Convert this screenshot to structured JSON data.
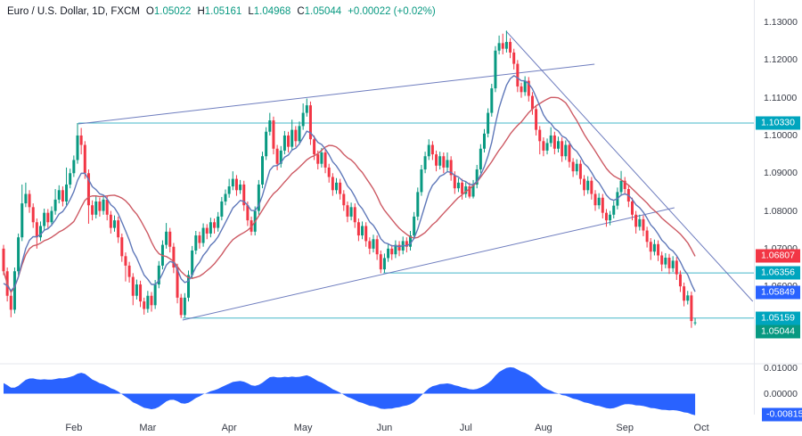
{
  "header": {
    "title": "Euro / U.S. Dollar, 1D, FXCM",
    "fields": [
      {
        "label": "O",
        "value": "1.05022"
      },
      {
        "label": "H",
        "value": "1.05161"
      },
      {
        "label": "L",
        "value": "1.04968"
      },
      {
        "label": "C",
        "value": "1.05044"
      }
    ],
    "change": "+0.00022 (+0.02%)"
  },
  "price_axis": {
    "labels": [
      {
        "text": "1.13000",
        "price": 1.13
      },
      {
        "text": "1.12000",
        "price": 1.12
      },
      {
        "text": "1.11000",
        "price": 1.11
      },
      {
        "text": "1.10000",
        "price": 1.1
      },
      {
        "text": "1.09000",
        "price": 1.09
      },
      {
        "text": "1.08000",
        "price": 1.08
      },
      {
        "text": "1.07000",
        "price": 1.07
      },
      {
        "text": "1.06000",
        "price": 1.06
      },
      {
        "text": "1.05000",
        "price": 1.05
      }
    ]
  },
  "badges": [
    {
      "text": "1.10330",
      "price": 1.1033,
      "color": "#00a5be",
      "kind": "level"
    },
    {
      "text": "1.06807",
      "price": 1.06807,
      "color": "#f23645",
      "kind": "ma-red"
    },
    {
      "text": "1.06356",
      "price": 1.06356,
      "color": "#00a5be",
      "kind": "level"
    },
    {
      "text": "1.05849",
      "price": 1.05849,
      "color": "#2962ff",
      "kind": "ma-blue"
    },
    {
      "text": "1.05159",
      "price": 1.05159,
      "color": "#00a5be",
      "kind": "level"
    },
    {
      "text": "1.05044",
      "price": 1.05044,
      "color": "#089981",
      "kind": "last-price"
    }
  ],
  "time_axis": {
    "months": [
      {
        "label": "Feb",
        "index": 19
      },
      {
        "label": "Mar",
        "index": 39
      },
      {
        "label": "Apr",
        "index": 61
      },
      {
        "label": "May",
        "index": 81
      },
      {
        "label": "Jun",
        "index": 103
      },
      {
        "label": "Jul",
        "index": 125
      },
      {
        "label": "Aug",
        "index": 146
      },
      {
        "label": "Sep",
        "index": 168
      },
      {
        "label": "Oct",
        "index": 188.7
      }
    ]
  },
  "indicator_axis": {
    "labels": [
      {
        "text": "0.01000",
        "value": 0.01
      },
      {
        "text": "0.00000",
        "value": 0.0
      }
    ],
    "badge": {
      "text": "-0.00815",
      "value": -0.00815,
      "color": "#2962ff"
    }
  },
  "colors": {
    "up": "#089981",
    "down": "#f23645",
    "ma_blue": "#5f78b9",
    "ma_red": "#cd5a64",
    "trendline": "#5f6fb8",
    "level": "#45b7c9",
    "indicator_fill": "#2962ff",
    "separator": "#e4e7ee",
    "axis_text": "#363a45"
  },
  "chart_data": {
    "type": "candlestick",
    "title": "Euro / U.S. Dollar, 1D, FXCM",
    "symbol": "EUR/USD",
    "timeframe": "1D",
    "last": {
      "open": 1.05022,
      "high": 1.05161,
      "low": 1.04968,
      "close": 1.05044,
      "change": 0.00022,
      "change_pct": 0.02
    },
    "price_range": [
      1.04,
      1.135
    ],
    "x_months": [
      "Feb",
      "Mar",
      "Apr",
      "May",
      "Jun",
      "Jul",
      "Aug",
      "Sep",
      "Oct"
    ],
    "candles": [
      [
        1.07,
        1.071,
        1.063,
        1.064
      ],
      [
        1.064,
        1.065,
        1.056,
        1.0575
      ],
      [
        1.0575,
        1.0585,
        1.0518,
        1.0538
      ],
      [
        1.0538,
        1.065,
        1.0528,
        1.064
      ],
      [
        1.064,
        1.074,
        1.063,
        1.073
      ],
      [
        1.073,
        1.087,
        1.072,
        1.082
      ],
      [
        1.082,
        1.0875,
        1.081,
        1.0845
      ],
      [
        1.0845,
        1.0855,
        1.0795,
        1.081
      ],
      [
        1.081,
        1.082,
        1.0755,
        1.077
      ],
      [
        1.077,
        1.078,
        1.07,
        1.073
      ],
      [
        1.073,
        1.0772,
        1.072,
        1.076
      ],
      [
        1.076,
        1.0806,
        1.075,
        1.0795
      ],
      [
        1.0795,
        1.0805,
        1.0755,
        1.077
      ],
      [
        1.077,
        1.0812,
        1.076,
        1.08
      ],
      [
        1.08,
        1.0858,
        1.079,
        1.083
      ],
      [
        1.083,
        1.0868,
        1.082,
        1.0855
      ],
      [
        1.0855,
        1.0865,
        1.0812,
        1.0825
      ],
      [
        1.0825,
        1.0915,
        1.0815,
        1.087
      ],
      [
        1.087,
        1.0912,
        1.086,
        1.09
      ],
      [
        1.09,
        1.0947,
        1.089,
        1.0935
      ],
      [
        1.0935,
        1.1033,
        1.0925,
        1.1
      ],
      [
        1.1,
        1.102,
        1.095,
        1.0975
      ],
      [
        1.0975,
        1.0985,
        1.0885,
        1.09
      ],
      [
        1.09,
        1.091,
        1.0766,
        1.0815
      ],
      [
        1.0815,
        1.0828,
        1.0775,
        1.079
      ],
      [
        1.079,
        1.0838,
        1.078,
        1.0825
      ],
      [
        1.0825,
        1.0835,
        1.0785,
        1.08
      ],
      [
        1.08,
        1.0842,
        1.079,
        1.083
      ],
      [
        1.083,
        1.084,
        1.0775,
        1.079
      ],
      [
        1.079,
        1.08,
        1.074,
        1.0755
      ],
      [
        1.0755,
        1.0788,
        1.0745,
        1.0775
      ],
      [
        1.0775,
        1.0785,
        1.0715,
        1.073
      ],
      [
        1.073,
        1.074,
        1.0665,
        1.068
      ],
      [
        1.068,
        1.069,
        1.0613,
        1.0655
      ],
      [
        1.0655,
        1.0665,
        1.061,
        1.0625
      ],
      [
        1.0625,
        1.0635,
        1.055,
        1.0575
      ],
      [
        1.0575,
        1.0618,
        1.0565,
        1.0605
      ],
      [
        1.0605,
        1.0615,
        1.0545,
        1.056
      ],
      [
        1.056,
        1.057,
        1.0525,
        1.054
      ],
      [
        1.054,
        1.0588,
        1.053,
        1.0575
      ],
      [
        1.0575,
        1.0585,
        1.0533,
        1.055
      ],
      [
        1.055,
        1.0617,
        1.054,
        1.0605
      ],
      [
        1.0605,
        1.0667,
        1.0595,
        1.0655
      ],
      [
        1.0655,
        1.0722,
        1.0645,
        1.071
      ],
      [
        1.071,
        1.0768,
        1.07,
        1.0745
      ],
      [
        1.0745,
        1.0755,
        1.069,
        1.0705
      ],
      [
        1.0705,
        1.0715,
        1.0635,
        1.065
      ],
      [
        1.065,
        1.066,
        1.0555,
        1.057
      ],
      [
        1.057,
        1.058,
        1.0516,
        1.0524
      ],
      [
        1.0524,
        1.0582,
        1.0517,
        1.057
      ],
      [
        1.057,
        1.0642,
        1.056,
        1.063
      ],
      [
        1.063,
        1.0707,
        1.062,
        1.0695
      ],
      [
        1.0695,
        1.0747,
        1.0685,
        1.0735
      ],
      [
        1.0735,
        1.0745,
        1.07,
        1.0715
      ],
      [
        1.0715,
        1.0767,
        1.0705,
        1.0755
      ],
      [
        1.0755,
        1.0765,
        1.0725,
        1.074
      ],
      [
        1.074,
        1.0782,
        1.073,
        1.077
      ],
      [
        1.077,
        1.078,
        1.074,
        1.0755
      ],
      [
        1.0755,
        1.0797,
        1.0745,
        1.0785
      ],
      [
        1.0785,
        1.0837,
        1.0775,
        1.0825
      ],
      [
        1.0825,
        1.0857,
        1.0815,
        1.0845
      ],
      [
        1.0845,
        1.0885,
        1.0835,
        1.0865
      ],
      [
        1.0865,
        1.0905,
        1.0855,
        1.0885
      ],
      [
        1.0885,
        1.0895,
        1.084,
        1.0855
      ],
      [
        1.0855,
        1.0882,
        1.0845,
        1.087
      ],
      [
        1.087,
        1.088,
        1.08,
        1.0815
      ],
      [
        1.0815,
        1.0825,
        1.076,
        1.0775
      ],
      [
        1.0775,
        1.0785,
        1.0735,
        1.0745
      ],
      [
        1.0745,
        1.0812,
        1.0735,
        1.08
      ],
      [
        1.08,
        1.0882,
        1.079,
        1.087
      ],
      [
        1.087,
        1.0957,
        1.086,
        1.0945
      ],
      [
        1.0945,
        1.1022,
        1.0935,
        1.101
      ],
      [
        1.101,
        1.106,
        1.1,
        1.104
      ],
      [
        1.104,
        1.105,
        1.095,
        1.0965
      ],
      [
        1.0965,
        1.0975,
        1.0908,
        1.0925
      ],
      [
        1.0925,
        1.0972,
        1.0915,
        1.096
      ],
      [
        1.096,
        1.1012,
        1.095,
        1.1
      ],
      [
        1.1,
        1.101,
        1.0955,
        1.097
      ],
      [
        1.097,
        1.1042,
        1.096,
        1.1015
      ],
      [
        1.1015,
        1.1025,
        1.097,
        1.0985
      ],
      [
        1.0985,
        1.1037,
        1.0975,
        1.1025
      ],
      [
        1.1025,
        1.1085,
        1.1015,
        1.106
      ],
      [
        1.106,
        1.1098,
        1.105,
        1.108
      ],
      [
        1.108,
        1.109,
        1.0975,
        1.099
      ],
      [
        1.099,
        1.1,
        1.0935,
        1.095
      ],
      [
        1.095,
        1.096,
        1.091,
        1.0925
      ],
      [
        1.0925,
        1.0967,
        1.0915,
        1.0955
      ],
      [
        1.0955,
        1.0965,
        1.09,
        1.0915
      ],
      [
        1.0915,
        1.0925,
        1.0875,
        1.089
      ],
      [
        1.089,
        1.09,
        1.084,
        1.0855
      ],
      [
        1.0855,
        1.0887,
        1.0845,
        1.0875
      ],
      [
        1.0875,
        1.0885,
        1.083,
        1.0845
      ],
      [
        1.0845,
        1.0855,
        1.08,
        1.0815
      ],
      [
        1.0815,
        1.0825,
        1.077,
        1.0785
      ],
      [
        1.0785,
        1.0822,
        1.0775,
        1.081
      ],
      [
        1.081,
        1.082,
        1.0755,
        1.077
      ],
      [
        1.077,
        1.078,
        1.072,
        1.0735
      ],
      [
        1.0735,
        1.0772,
        1.0725,
        1.076
      ],
      [
        1.076,
        1.077,
        1.0705,
        1.072
      ],
      [
        1.072,
        1.073,
        1.0685,
        1.07
      ],
      [
        1.07,
        1.0737,
        1.069,
        1.0725
      ],
      [
        1.0725,
        1.0735,
        1.067,
        1.0685
      ],
      [
        1.0685,
        1.0695,
        1.0635,
        1.0645
      ],
      [
        1.0645,
        1.0687,
        1.0636,
        1.0675
      ],
      [
        1.0675,
        1.0712,
        1.0665,
        1.07
      ],
      [
        1.07,
        1.071,
        1.067,
        1.0685
      ],
      [
        1.0685,
        1.0722,
        1.0675,
        1.071
      ],
      [
        1.071,
        1.072,
        1.068,
        1.0695
      ],
      [
        1.0695,
        1.0732,
        1.0685,
        1.072
      ],
      [
        1.072,
        1.073,
        1.069,
        1.0705
      ],
      [
        1.0705,
        1.0747,
        1.0695,
        1.0735
      ],
      [
        1.0735,
        1.0797,
        1.0725,
        1.0785
      ],
      [
        1.0785,
        1.0862,
        1.0775,
        1.085
      ],
      [
        1.085,
        1.0922,
        1.084,
        1.091
      ],
      [
        1.091,
        1.0957,
        1.09,
        1.0945
      ],
      [
        1.0945,
        1.099,
        1.0935,
        1.0975
      ],
      [
        1.0975,
        1.0985,
        1.0935,
        1.095
      ],
      [
        1.095,
        1.096,
        1.0905,
        1.092
      ],
      [
        1.092,
        1.0957,
        1.091,
        1.0945
      ],
      [
        1.0945,
        1.0955,
        1.09,
        1.0915
      ],
      [
        1.0915,
        1.0955,
        1.0905,
        1.0935
      ],
      [
        1.0935,
        1.0945,
        1.088,
        1.0895
      ],
      [
        1.0895,
        1.0905,
        1.0845,
        1.086
      ],
      [
        1.086,
        1.0887,
        1.085,
        1.0875
      ],
      [
        1.0875,
        1.0885,
        1.083,
        1.0845
      ],
      [
        1.0845,
        1.0877,
        1.0835,
        1.0865
      ],
      [
        1.0865,
        1.0875,
        1.0833,
        1.0838
      ],
      [
        1.0838,
        1.0882,
        1.0833,
        1.087
      ],
      [
        1.087,
        1.0922,
        1.086,
        1.091
      ],
      [
        1.091,
        1.0977,
        1.09,
        1.0965
      ],
      [
        1.0965,
        1.1017,
        1.0955,
        1.1005
      ],
      [
        1.1005,
        1.1072,
        1.0995,
        1.106
      ],
      [
        1.106,
        1.1137,
        1.105,
        1.1125
      ],
      [
        1.1125,
        1.1237,
        1.1115,
        1.1225
      ],
      [
        1.1225,
        1.1265,
        1.1215,
        1.1245
      ],
      [
        1.1245,
        1.127,
        1.1215,
        1.123
      ],
      [
        1.123,
        1.1278,
        1.122,
        1.1248
      ],
      [
        1.1248,
        1.1258,
        1.1205,
        1.122
      ],
      [
        1.122,
        1.123,
        1.1175,
        1.119
      ],
      [
        1.119,
        1.12,
        1.1115,
        1.113
      ],
      [
        1.113,
        1.114,
        1.11,
        1.1115
      ],
      [
        1.1115,
        1.1157,
        1.1105,
        1.1145
      ],
      [
        1.1145,
        1.1155,
        1.109,
        1.1105
      ],
      [
        1.1105,
        1.1115,
        1.1055,
        1.107
      ],
      [
        1.107,
        1.108,
        1.1,
        1.1015
      ],
      [
        1.1015,
        1.1025,
        1.095,
        1.0985
      ],
      [
        1.0985,
        1.0995,
        1.0945,
        1.096
      ],
      [
        1.096,
        1.0992,
        1.095,
        1.098
      ],
      [
        1.098,
        1.1022,
        1.097,
        1.1
      ],
      [
        1.1,
        1.101,
        1.095,
        1.0965
      ],
      [
        1.0965,
        1.0997,
        1.0955,
        1.0985
      ],
      [
        1.0985,
        1.0995,
        1.093,
        1.0945
      ],
      [
        1.0945,
        1.0987,
        1.0935,
        1.0975
      ],
      [
        1.0975,
        1.0985,
        1.0915,
        1.093
      ],
      [
        1.093,
        1.094,
        1.089,
        1.0905
      ],
      [
        1.0905,
        1.0937,
        1.0895,
        1.0925
      ],
      [
        1.0925,
        1.0935,
        1.087,
        1.0885
      ],
      [
        1.0885,
        1.0895,
        1.084,
        1.0855
      ],
      [
        1.0855,
        1.0892,
        1.0845,
        1.088
      ],
      [
        1.088,
        1.089,
        1.083,
        1.0845
      ],
      [
        1.0845,
        1.0855,
        1.08,
        1.0815
      ],
      [
        1.0815,
        1.0847,
        1.0805,
        1.0835
      ],
      [
        1.0835,
        1.0845,
        1.078,
        1.0795
      ],
      [
        1.0795,
        1.0805,
        1.0758,
        1.0775
      ],
      [
        1.0775,
        1.08,
        1.0762,
        1.079
      ],
      [
        1.079,
        1.0826,
        1.078,
        1.0814
      ],
      [
        1.0814,
        1.0862,
        1.0804,
        1.085
      ],
      [
        1.085,
        1.0906,
        1.084,
        1.088
      ],
      [
        1.088,
        1.089,
        1.0843,
        1.0858
      ],
      [
        1.0858,
        1.0868,
        1.081,
        1.0825
      ],
      [
        1.0825,
        1.0835,
        1.0775,
        1.079
      ],
      [
        1.079,
        1.08,
        1.074,
        1.0758
      ],
      [
        1.0758,
        1.079,
        1.0748,
        1.0778
      ],
      [
        1.0778,
        1.0788,
        1.0733,
        1.0748
      ],
      [
        1.0748,
        1.0758,
        1.0703,
        1.0718
      ],
      [
        1.0718,
        1.0728,
        1.067,
        1.0692
      ],
      [
        1.0692,
        1.0724,
        1.0682,
        1.0712
      ],
      [
        1.0712,
        1.0722,
        1.0667,
        1.0682
      ],
      [
        1.0682,
        1.0692,
        1.064,
        1.0658
      ],
      [
        1.0658,
        1.0688,
        1.0648,
        1.0676
      ],
      [
        1.0676,
        1.0686,
        1.0633,
        1.0648
      ],
      [
        1.0648,
        1.068,
        1.0638,
        1.0668
      ],
      [
        1.0668,
        1.0678,
        1.0617,
        1.0632
      ],
      [
        1.0632,
        1.0642,
        1.0585,
        1.06
      ],
      [
        1.06,
        1.061,
        1.0547,
        1.0562
      ],
      [
        1.0562,
        1.0588,
        1.0552,
        1.0576
      ],
      [
        1.0576,
        1.0586,
        1.049,
        1.0508
      ],
      [
        1.05022,
        1.05161,
        1.04968,
        1.05044
      ]
    ],
    "levels": [
      {
        "price": 1.1033,
        "from_index": 20.2
      },
      {
        "price": 1.06356,
        "from_index": 102.7
      },
      {
        "price": 1.05159,
        "from_index": 48.4
      }
    ],
    "trendlines": [
      {
        "i1": 20.2,
        "p1": 1.10307,
        "i2": 159.8,
        "p2": 1.11891
      },
      {
        "i1": 48.4,
        "p1": 1.05106,
        "i2": 181.4,
        "p2": 1.08085
      },
      {
        "i1": 135.9,
        "p1": 1.12765,
        "i2": 202.6,
        "p2": 1.05602
      }
    ],
    "moving_averages": [
      {
        "kind": "ema",
        "period": 9,
        "color": "#5f78b9",
        "last_value": 1.05849
      },
      {
        "kind": "sma",
        "period": 20,
        "color": "#cd5a64",
        "last_value": 1.06807
      }
    ],
    "lower_indicator": {
      "kind": "macd",
      "fast": 12,
      "slow": 26,
      "last_value": -0.00815,
      "ylabels": [
        0.01,
        0.0
      ],
      "color": "#2962ff"
    }
  }
}
